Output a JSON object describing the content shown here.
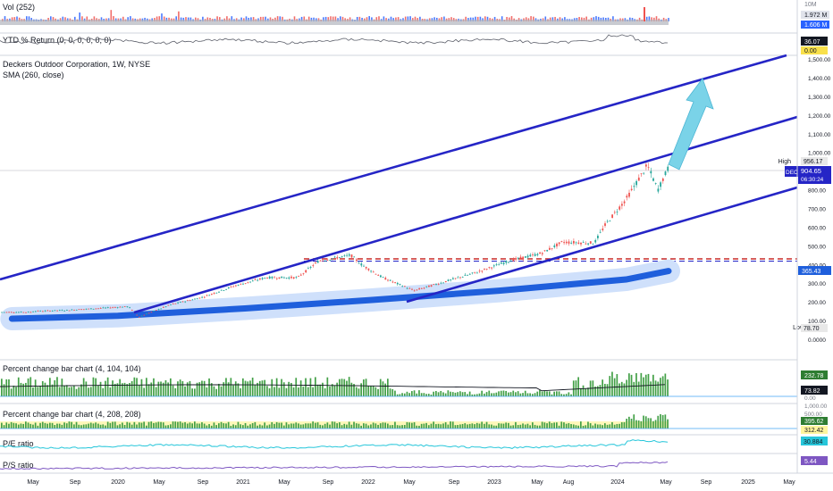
{
  "chart_data": [
    {
      "type": "bar",
      "pane": "volume",
      "legend": "Vol (252)",
      "axis_labels": [
        "10M"
      ],
      "values_shown": [
        "1.972 M",
        "1.606 M"
      ]
    },
    {
      "type": "line",
      "pane": "ytd",
      "legend": "YTD % Return (0, 0, 0, 0, 0, 0)",
      "values_shown": [
        "36.07",
        "0.00"
      ]
    },
    {
      "type": "line",
      "pane": "price",
      "title": "Deckers Outdoor Corporation, 1W, NYSE",
      "legend": "SMA (260, close)",
      "x_ticks": [
        "May",
        "Sep",
        "2020",
        "May",
        "Sep",
        "2021",
        "May",
        "Sep",
        "2022",
        "May",
        "Sep",
        "2023",
        "May",
        "Aug",
        "2024",
        "May",
        "Sep",
        "2025",
        "May"
      ],
      "y_ticks": [
        "1,500.00",
        "1,400.00",
        "1,300.00",
        "1,200.00",
        "1,100.00",
        "1,000.00",
        "900.00",
        "800.00",
        "700.00",
        "600.00",
        "500.00",
        "400.00",
        "300.00",
        "200.00",
        "100.00",
        "0.0000"
      ],
      "price_label": "904.65",
      "ticker": "DECK",
      "countdown": "06:30:24",
      "high_label": "High",
      "high_value": "956.17",
      "low_label": "Low",
      "low_value": "78.70",
      "sma_value": "365.43",
      "price_points": [
        [
          "2019-05",
          150
        ],
        [
          "2019-08",
          155
        ],
        [
          "2019-11",
          165
        ],
        [
          "2020-02",
          175
        ],
        [
          "2020-03",
          120
        ],
        [
          "2020-06",
          185
        ],
        [
          "2020-09",
          225
        ],
        [
          "2020-12",
          285
        ],
        [
          "2021-03",
          330
        ],
        [
          "2021-06",
          330
        ],
        [
          "2021-08",
          420
        ],
        [
          "2021-11",
          450
        ],
        [
          "2021-12",
          400
        ],
        [
          "2022-02",
          330
        ],
        [
          "2022-05",
          260
        ],
        [
          "2022-08",
          310
        ],
        [
          "2022-11",
          360
        ],
        [
          "2023-02",
          420
        ],
        [
          "2023-05",
          460
        ],
        [
          "2023-07",
          520
        ],
        [
          "2023-10",
          515
        ],
        [
          "2023-11",
          610
        ],
        [
          "2024-01",
          750
        ],
        [
          "2024-03",
          930
        ],
        [
          "2024-04",
          800
        ],
        [
          "2024-05",
          920
        ]
      ],
      "sma_points": [
        [
          "2019-03",
          110
        ],
        [
          "2020-01",
          125
        ],
        [
          "2021-01",
          165
        ],
        [
          "2022-01",
          210
        ],
        [
          "2023-01",
          260
        ],
        [
          "2024-01",
          320
        ],
        [
          "2024-05",
          365
        ]
      ],
      "resistance_level": 450,
      "colors": {
        "candle_up": "#26a69a",
        "candle_down": "#ef5350",
        "channel": "#2525c6",
        "sma": "#1f5fdc",
        "arrow": "#7ad3e8",
        "resistance": "#c62828"
      }
    },
    {
      "type": "bar",
      "pane": "pct1",
      "legend": "Percent change bar chart (4, 104, 104)",
      "values_shown": [
        "232.78",
        "73.82"
      ],
      "axis_labels": [
        "0.00"
      ]
    },
    {
      "type": "bar",
      "pane": "pct2",
      "legend": "Percent change bar chart (4, 208, 208)",
      "values_shown": [
        "395.62",
        "312.42"
      ],
      "axis_labels": [
        "1,000.00",
        "500.00"
      ]
    },
    {
      "type": "line",
      "pane": "pe",
      "legend": "P/E ratio",
      "values_shown": [
        "30.884"
      ]
    },
    {
      "type": "line",
      "pane": "ps",
      "legend": "P/S ratio",
      "values_shown": [
        "5.44"
      ]
    }
  ]
}
